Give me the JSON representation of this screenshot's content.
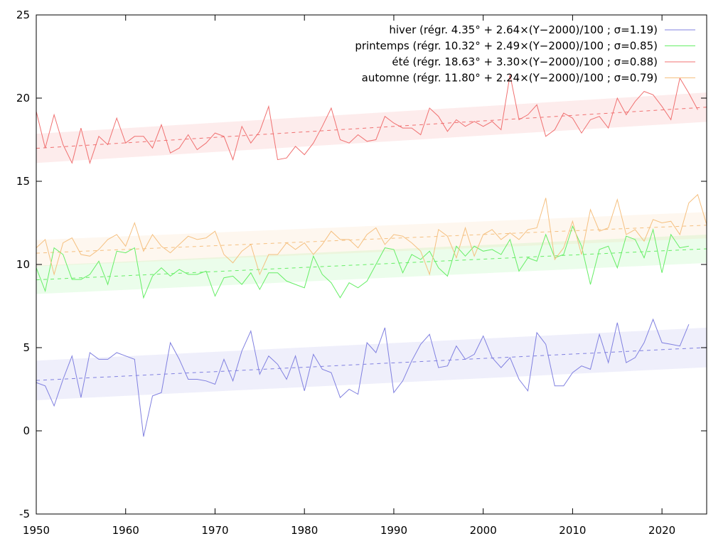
{
  "chart_data": {
    "type": "line",
    "title": "",
    "xlabel": "",
    "ylabel": "",
    "xlim": [
      1950,
      2025
    ],
    "ylim": [
      -5,
      25
    ],
    "x_ticks": [
      1950,
      1960,
      1970,
      1980,
      1990,
      2000,
      2010,
      2020
    ],
    "y_ticks": [
      -5,
      0,
      5,
      10,
      15,
      20,
      25
    ],
    "grid": false,
    "legend_position": "top-right",
    "series": [
      {
        "name": "hiver (régr. 4.35° + 2.64×(Y−2000)/100 ; σ=1.19)",
        "color": "#8080e0",
        "fit": {
          "intercept": 4.35,
          "slope_per_century": 2.64,
          "sigma": 1.19
        },
        "x": [
          1950,
          1951,
          1952,
          1953,
          1954,
          1955,
          1956,
          1957,
          1958,
          1959,
          1960,
          1961,
          1962,
          1963,
          1964,
          1965,
          1966,
          1967,
          1968,
          1969,
          1970,
          1971,
          1972,
          1973,
          1974,
          1975,
          1976,
          1977,
          1978,
          1979,
          1980,
          1981,
          1982,
          1983,
          1984,
          1985,
          1986,
          1987,
          1988,
          1989,
          1990,
          1991,
          1992,
          1993,
          1994,
          1995,
          1996,
          1997,
          1998,
          1999,
          2000,
          2001,
          2002,
          2003,
          2004,
          2005,
          2006,
          2007,
          2008,
          2009,
          2010,
          2011,
          2012,
          2013,
          2014,
          2015,
          2016,
          2017,
          2018,
          2019,
          2020,
          2021,
          2022,
          2023,
          2024,
          2025
        ],
        "values": [
          2.9,
          2.7,
          1.5,
          3.1,
          4.5,
          2.0,
          4.7,
          4.3,
          4.3,
          4.7,
          4.5,
          4.3,
          -0.35,
          2.1,
          2.3,
          5.3,
          4.3,
          3.1,
          3.1,
          3.0,
          2.8,
          4.3,
          3.0,
          4.8,
          6.0,
          3.4,
          4.5,
          4.0,
          3.1,
          4.5,
          2.4,
          4.6,
          3.7,
          3.5,
          2.0,
          2.5,
          2.2,
          5.3,
          4.7,
          6.2,
          2.3,
          3.0,
          4.2,
          5.2,
          5.8,
          3.8,
          3.9,
          5.1,
          4.3,
          4.6,
          5.7,
          4.4,
          3.8,
          4.4,
          3.1,
          2.4,
          5.9,
          5.2,
          2.7,
          2.7,
          3.5,
          3.9,
          3.7,
          5.8,
          4.1,
          6.5,
          4.1,
          4.4,
          5.3,
          6.7,
          5.3,
          5.2,
          5.1,
          6.4,
          null,
          null
        ]
      },
      {
        "name": "printemps (régr. 10.32° + 2.49×(Y−2000)/100 ; σ=0.85)",
        "color": "#66ee66",
        "fit": {
          "intercept": 10.32,
          "slope_per_century": 2.49,
          "sigma": 0.85
        },
        "x": [
          1950,
          1951,
          1952,
          1953,
          1954,
          1955,
          1956,
          1957,
          1958,
          1959,
          1960,
          1961,
          1962,
          1963,
          1964,
          1965,
          1966,
          1967,
          1968,
          1969,
          1970,
          1971,
          1972,
          1973,
          1974,
          1975,
          1976,
          1977,
          1978,
          1979,
          1980,
          1981,
          1982,
          1983,
          1984,
          1985,
          1986,
          1987,
          1988,
          1989,
          1990,
          1991,
          1992,
          1993,
          1994,
          1995,
          1996,
          1997,
          1998,
          1999,
          2000,
          2001,
          2002,
          2003,
          2004,
          2005,
          2006,
          2007,
          2008,
          2009,
          2010,
          2011,
          2012,
          2013,
          2014,
          2015,
          2016,
          2017,
          2018,
          2019,
          2020,
          2021,
          2022,
          2023,
          2024,
          2025
        ],
        "values": [
          9.8,
          8.4,
          11.0,
          10.6,
          9.1,
          9.1,
          9.4,
          10.2,
          8.8,
          10.8,
          10.7,
          11.0,
          8.0,
          9.3,
          9.8,
          9.3,
          9.7,
          9.4,
          9.4,
          9.6,
          8.1,
          9.2,
          9.3,
          8.8,
          9.5,
          8.5,
          9.5,
          9.5,
          9.0,
          8.8,
          8.6,
          10.5,
          9.4,
          8.9,
          8.0,
          8.9,
          8.6,
          9.0,
          10.0,
          11.0,
          10.9,
          9.5,
          10.6,
          10.3,
          10.8,
          9.8,
          9.3,
          11.1,
          10.5,
          11.1,
          10.8,
          10.9,
          10.6,
          11.5,
          9.6,
          10.4,
          10.2,
          11.8,
          10.4,
          10.6,
          12.3,
          11.1,
          8.8,
          10.9,
          11.1,
          9.8,
          11.7,
          11.5,
          10.4,
          12.1,
          9.5,
          11.8,
          11.0,
          11.1,
          null,
          null
        ]
      },
      {
        "name": "été (régr. 18.63° + 3.30×(Y−2000)/100 ; σ=0.88)",
        "color": "#f07070",
        "fit": {
          "intercept": 18.63,
          "slope_per_century": 3.3,
          "sigma": 0.88
        },
        "x": [
          1950,
          1951,
          1952,
          1953,
          1954,
          1955,
          1956,
          1957,
          1958,
          1959,
          1960,
          1961,
          1962,
          1963,
          1964,
          1965,
          1966,
          1967,
          1968,
          1969,
          1970,
          1971,
          1972,
          1973,
          1974,
          1975,
          1976,
          1977,
          1978,
          1979,
          1980,
          1981,
          1982,
          1983,
          1984,
          1985,
          1986,
          1987,
          1988,
          1989,
          1990,
          1991,
          1992,
          1993,
          1994,
          1995,
          1996,
          1997,
          1998,
          1999,
          2000,
          2001,
          2002,
          2003,
          2004,
          2005,
          2006,
          2007,
          2008,
          2009,
          2010,
          2011,
          2012,
          2013,
          2014,
          2015,
          2016,
          2017,
          2018,
          2019,
          2020,
          2021,
          2022,
          2023,
          2024,
          2025
        ],
        "values": [
          19.2,
          17.0,
          19.0,
          17.2,
          16.1,
          18.2,
          16.1,
          17.7,
          17.2,
          18.8,
          17.3,
          17.7,
          17.7,
          17.0,
          18.4,
          16.7,
          17.0,
          17.8,
          16.9,
          17.3,
          17.9,
          17.7,
          16.3,
          18.3,
          17.3,
          18.0,
          19.5,
          16.3,
          16.4,
          17.1,
          16.6,
          17.3,
          18.3,
          19.4,
          17.5,
          17.3,
          17.8,
          17.4,
          17.5,
          18.9,
          18.5,
          18.2,
          18.2,
          17.8,
          19.4,
          18.9,
          18.0,
          18.7,
          18.3,
          18.6,
          18.3,
          18.6,
          18.1,
          21.4,
          18.7,
          19.0,
          19.6,
          17.7,
          18.1,
          19.1,
          18.8,
          17.9,
          18.7,
          18.9,
          18.2,
          20.0,
          19.0,
          19.8,
          20.4,
          20.2,
          19.5,
          18.7,
          21.2,
          20.3,
          19.3,
          null
        ]
      },
      {
        "name": "automne (régr. 11.80° + 2.24×(Y−2000)/100 ; σ=0.79)",
        "color": "#f5c080",
        "fit": {
          "intercept": 11.8,
          "slope_per_century": 2.24,
          "sigma": 0.79
        },
        "x": [
          1950,
          1951,
          1952,
          1953,
          1954,
          1955,
          1956,
          1957,
          1958,
          1959,
          1960,
          1961,
          1962,
          1963,
          1964,
          1965,
          1966,
          1967,
          1968,
          1969,
          1970,
          1971,
          1972,
          1973,
          1974,
          1975,
          1976,
          1977,
          1978,
          1979,
          1980,
          1981,
          1982,
          1983,
          1984,
          1985,
          1986,
          1987,
          1988,
          1989,
          1990,
          1991,
          1992,
          1993,
          1994,
          1995,
          1996,
          1997,
          1998,
          1999,
          2000,
          2001,
          2002,
          2003,
          2004,
          2005,
          2006,
          2007,
          2008,
          2009,
          2010,
          2011,
          2012,
          2013,
          2014,
          2015,
          2016,
          2017,
          2018,
          2019,
          2020,
          2021,
          2022,
          2023,
          2024,
          2025
        ],
        "values": [
          11.0,
          11.5,
          9.4,
          11.3,
          11.6,
          10.6,
          10.5,
          10.9,
          11.5,
          11.8,
          11.1,
          12.5,
          10.8,
          11.8,
          11.1,
          10.7,
          11.2,
          11.7,
          11.5,
          11.6,
          12.0,
          10.6,
          10.1,
          10.8,
          11.2,
          9.4,
          10.6,
          10.6,
          11.3,
          10.9,
          11.3,
          10.6,
          11.2,
          12.0,
          11.5,
          11.5,
          11.0,
          11.8,
          12.2,
          11.2,
          11.8,
          11.7,
          11.3,
          10.8,
          9.4,
          12.1,
          11.7,
          10.4,
          12.2,
          10.5,
          11.8,
          12.1,
          11.5,
          11.9,
          11.5,
          12.1,
          12.2,
          14.0,
          10.3,
          11.0,
          12.6,
          10.6,
          13.3,
          12.0,
          12.2,
          13.9,
          11.8,
          12.1,
          11.4,
          12.7,
          12.5,
          12.6,
          11.8,
          13.7,
          14.2,
          12.4
        ]
      }
    ]
  }
}
